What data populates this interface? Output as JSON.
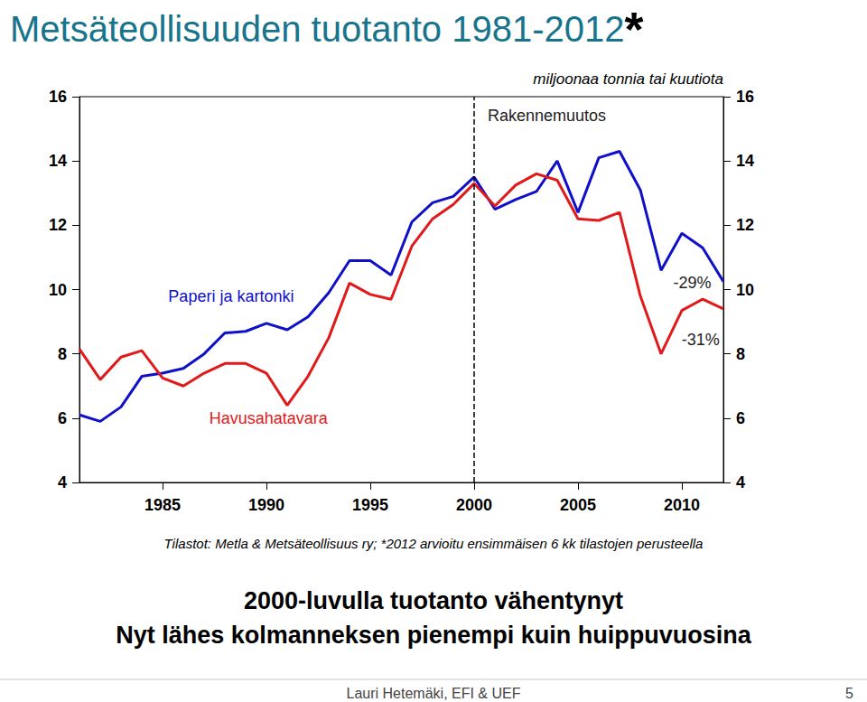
{
  "chart_data": {
    "type": "line",
    "title": "Metsäteollisuuden tuotanto 1981-2012*",
    "subtitle": "miljoonaa tonnia tai kuutiota",
    "x": [
      1981,
      1982,
      1983,
      1984,
      1985,
      1986,
      1987,
      1988,
      1989,
      1990,
      1991,
      1992,
      1993,
      1994,
      1995,
      1996,
      1997,
      1998,
      1999,
      2000,
      2001,
      2002,
      2003,
      2004,
      2005,
      2006,
      2007,
      2008,
      2009,
      2010,
      2011,
      2012
    ],
    "series": [
      {
        "name": "Paperi ja kartonki",
        "color": "#1010c8",
        "values": [
          6.1,
          5.9,
          6.35,
          7.3,
          7.4,
          7.55,
          8.0,
          8.65,
          8.7,
          8.95,
          8.75,
          9.15,
          9.9,
          10.9,
          10.9,
          10.45,
          12.1,
          12.7,
          12.9,
          13.5,
          12.5,
          12.8,
          13.05,
          14.0,
          12.4,
          14.1,
          14.3,
          13.1,
          10.6,
          11.75,
          11.3,
          10.25
        ]
      },
      {
        "name": "Havusahatavara",
        "color": "#e01a1a",
        "values": [
          8.15,
          7.2,
          7.9,
          8.1,
          7.25,
          7.0,
          7.4,
          7.7,
          7.7,
          7.4,
          6.4,
          7.3,
          8.5,
          10.2,
          9.85,
          9.7,
          11.35,
          12.2,
          12.65,
          13.3,
          12.6,
          13.25,
          13.6,
          13.4,
          12.2,
          12.15,
          12.4,
          9.8,
          8.0,
          9.35,
          9.7,
          9.4
        ]
      }
    ],
    "xlim": [
      1981,
      2012
    ],
    "xticks": [
      1985,
      1990,
      1995,
      2000,
      2005,
      2010
    ],
    "ylim": [
      4,
      16
    ],
    "yticks": [
      4,
      6,
      8,
      10,
      12,
      14,
      16
    ],
    "y2lim": [
      4,
      16
    ],
    "y2ticks": [
      4,
      6,
      8,
      10,
      12,
      14,
      16
    ],
    "grid": false,
    "reference_line": {
      "x": 2000,
      "line_style": "dashed"
    },
    "annotations": [
      {
        "text": "Rakennemuutos",
        "x": 2003.5,
        "y": 15.4,
        "color": "#222222"
      },
      {
        "text": "Paperi ja kartonki",
        "x": 1988.3,
        "y": 9.8,
        "color": "#1010c8"
      },
      {
        "text": "Havusahatavara",
        "x": 1990.1,
        "y": 6.0,
        "color": "#e01a1a"
      },
      {
        "text": "-29%",
        "x": 2010.5,
        "y": 10.2,
        "color": "#222222"
      },
      {
        "text": "-31%",
        "x": 2010.9,
        "y": 8.45,
        "color": "#222222"
      }
    ],
    "source": "Tilastot: Metla & Metsäteollisuus ry; *2012 arvioitu ensimmäisen 6 kk tilastojen perusteella",
    "notes": [
      "2000-luvulla tuotanto vähentynyt",
      "Nyt lähes kolmanneksen pienempi kuin huippuvuosina"
    ],
    "footer": "Lauri Hetemäki, EFI & UEF",
    "page": "5"
  }
}
